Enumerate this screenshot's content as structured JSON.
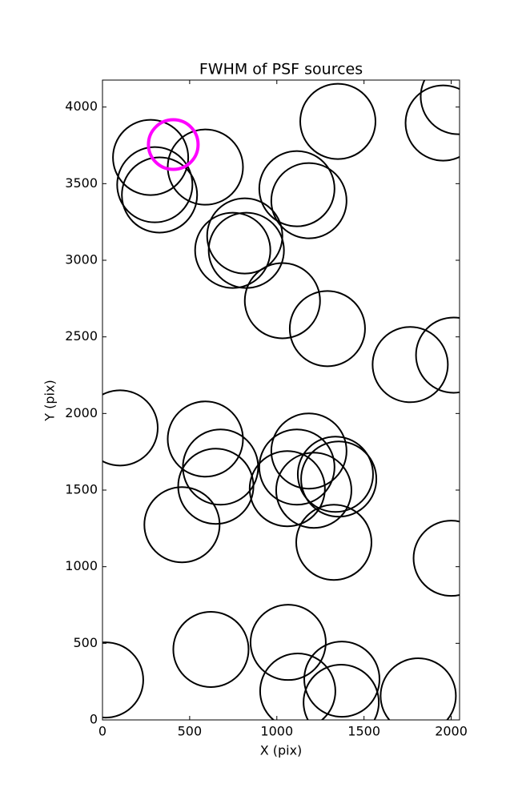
{
  "chart_data": {
    "type": "scatter",
    "title": "FWHM of PSF sources",
    "x_label": "X (pix)",
    "y_label": "Y (pix)",
    "x": [
      1350,
      1954,
      2041,
      276,
      590,
      300,
      327,
      1115,
      1184,
      816,
      747,
      825,
      1032,
      1290,
      1765,
      2014,
      101,
      590,
      1184,
      677,
      1115,
      650,
      1060,
      1212,
      1336,
      1355,
      456,
      1327,
      2000,
      622,
      1065,
      1373,
      1120,
      1369,
      1811,
      18
    ],
    "y": [
      3906,
      3896,
      4068,
      3671,
      3608,
      3493,
      3426,
      3467,
      3389,
      3159,
      3065,
      3065,
      2736,
      2554,
      2319,
      2381,
      1906,
      1833,
      1755,
      1650,
      1650,
      1525,
      1509,
      1499,
      1603,
      1572,
      1274,
      1159,
      1055,
      460,
      506,
      266,
      188,
      115,
      157,
      261
    ],
    "color": "#000000",
    "highlight": {
      "x": 406,
      "y": 3755,
      "color": "#ff00ff"
    },
    "xlim": [
      0,
      2048
    ],
    "ylim": [
      0,
      4176
    ],
    "xticks": [
      0,
      500,
      1000,
      1500,
      2000
    ],
    "yticks": [
      0,
      500,
      1000,
      1500,
      2000,
      2500,
      3000,
      3500,
      4000
    ]
  }
}
